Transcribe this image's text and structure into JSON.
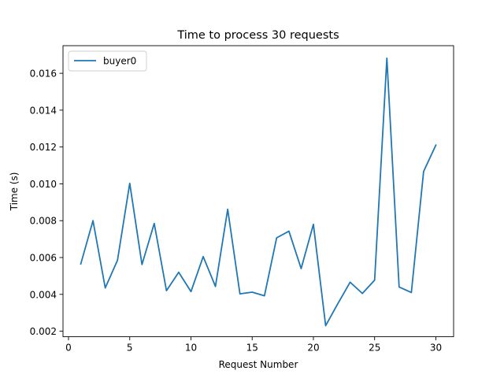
{
  "chart_data": {
    "type": "line",
    "title": "Time to process 30 requests",
    "xlabel": "Request Number",
    "ylabel": "Time (s)",
    "xlim": [
      -0.45,
      31.45
    ],
    "ylim": [
      0.0017,
      0.0175
    ],
    "xticks": [
      0,
      5,
      10,
      15,
      20,
      25,
      30
    ],
    "xtick_labels": [
      "0",
      "5",
      "10",
      "15",
      "20",
      "25",
      "30"
    ],
    "yticks": [
      0.002,
      0.004,
      0.006,
      0.008,
      0.01,
      0.012,
      0.014,
      0.016
    ],
    "ytick_labels": [
      "0.002",
      "0.004",
      "0.006",
      "0.008",
      "0.010",
      "0.012",
      "0.014",
      "0.016"
    ],
    "legend_position": "top-left",
    "grid": false,
    "x": [
      1,
      2,
      3,
      4,
      5,
      6,
      7,
      8,
      9,
      10,
      11,
      12,
      13,
      14,
      15,
      16,
      17,
      18,
      19,
      20,
      21,
      22,
      23,
      24,
      25,
      26,
      27,
      28,
      29,
      30
    ],
    "series": [
      {
        "name": "buyer0",
        "color": "#1f77b4",
        "values": [
          0.00565,
          0.008,
          0.00435,
          0.00585,
          0.01003,
          0.00562,
          0.00785,
          0.0042,
          0.0052,
          0.00415,
          0.00605,
          0.00443,
          0.00862,
          0.00403,
          0.00412,
          0.00392,
          0.00707,
          0.00743,
          0.0054,
          0.0078,
          0.0023,
          0.0035,
          0.00466,
          0.00405,
          0.00477,
          0.01682,
          0.0044,
          0.0041,
          0.01067,
          0.0121
        ]
      }
    ]
  }
}
